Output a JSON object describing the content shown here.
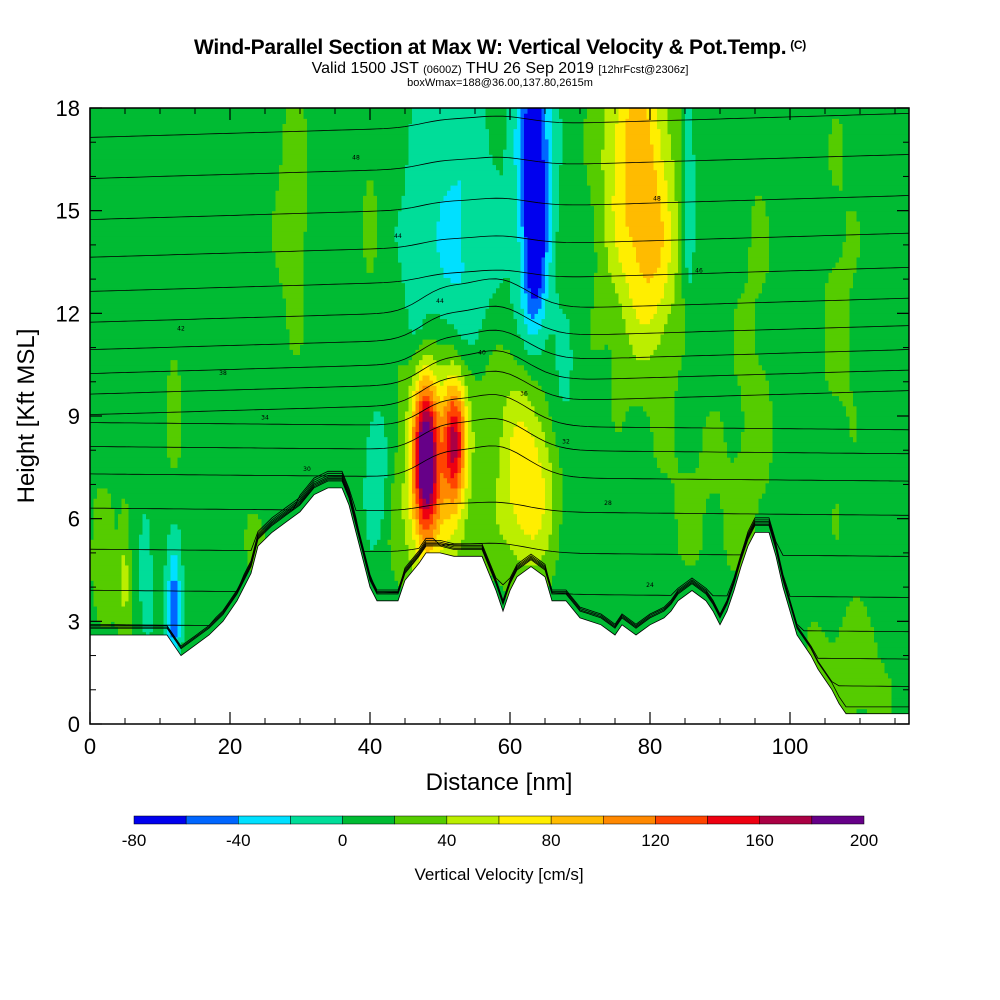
{
  "header": {
    "title": "Wind-Parallel Section at Max W: Vertical Velocity & Pot.Temp.",
    "copyright": "(C)",
    "valid_prefix": "Valid 1500 JST",
    "valid_utc": "(0600Z)",
    "valid_date": "THU 26 Sep 2019",
    "forecast": "[12hrFcst@2306z]",
    "box_info": "boxWmax=188@36.00,137.80,2615m"
  },
  "chart_data": {
    "type": "heatmap",
    "title": "Wind-Parallel Section at Max W: Vertical Velocity & Pot.Temp.",
    "xlabel": "Distance [nm]",
    "ylabel": "Height [Kft MSL]",
    "xlim": [
      0,
      117
    ],
    "ylim": [
      0,
      18
    ],
    "xticks": [
      0,
      20,
      40,
      60,
      80,
      100
    ],
    "yticks": [
      0,
      3,
      6,
      9,
      12,
      15,
      18
    ],
    "colorbar": {
      "label": "Vertical Velocity [cm/s]",
      "ticks": [
        -80,
        -40,
        0,
        40,
        80,
        120,
        160,
        200
      ],
      "levels": [
        -80,
        -60,
        -40,
        -20,
        0,
        20,
        40,
        60,
        80,
        100,
        120,
        140,
        160,
        180,
        200
      ],
      "colors": [
        "#0000ee",
        "#0066ff",
        "#00e0ff",
        "#00dd99",
        "#00bb33",
        "#55cc00",
        "#bbee00",
        "#ffee00",
        "#ffbb00",
        "#ff8800",
        "#ff4400",
        "#ee0011",
        "#aa0044",
        "#660088"
      ]
    },
    "terrain": [
      [
        0,
        2.6
      ],
      [
        4,
        2.6
      ],
      [
        8,
        2.6
      ],
      [
        11,
        2.6
      ],
      [
        12,
        2.3
      ],
      [
        13,
        2.0
      ],
      [
        15,
        2.3
      ],
      [
        17,
        2.6
      ],
      [
        19,
        3.0
      ],
      [
        21,
        3.6
      ],
      [
        23,
        4.4
      ],
      [
        24,
        5.2
      ],
      [
        26,
        5.6
      ],
      [
        28,
        5.9
      ],
      [
        30,
        6.2
      ],
      [
        32,
        6.7
      ],
      [
        34,
        6.9
      ],
      [
        36,
        6.9
      ],
      [
        37,
        6.4
      ],
      [
        38,
        5.6
      ],
      [
        39,
        4.8
      ],
      [
        40,
        4.0
      ],
      [
        41,
        3.6
      ],
      [
        44,
        3.6
      ],
      [
        45,
        4.2
      ],
      [
        47,
        4.7
      ],
      [
        48,
        5.0
      ],
      [
        50,
        5.0
      ],
      [
        52,
        4.9
      ],
      [
        56,
        4.9
      ],
      [
        58,
        3.9
      ],
      [
        59,
        3.3
      ],
      [
        60,
        3.9
      ],
      [
        61,
        4.3
      ],
      [
        63,
        4.6
      ],
      [
        65,
        4.3
      ],
      [
        66,
        3.6
      ],
      [
        68,
        3.6
      ],
      [
        70,
        3.1
      ],
      [
        73,
        2.9
      ],
      [
        75,
        2.6
      ],
      [
        76,
        2.9
      ],
      [
        78,
        2.6
      ],
      [
        80,
        2.9
      ],
      [
        82,
        3.1
      ],
      [
        83,
        3.3
      ],
      [
        84,
        3.6
      ],
      [
        86,
        3.9
      ],
      [
        88,
        3.6
      ],
      [
        89,
        3.3
      ],
      [
        90,
        2.9
      ],
      [
        91,
        3.3
      ],
      [
        92,
        3.9
      ],
      [
        93,
        4.6
      ],
      [
        94,
        5.2
      ],
      [
        95,
        5.6
      ],
      [
        97,
        5.6
      ],
      [
        98,
        4.9
      ],
      [
        99,
        4.0
      ],
      [
        100,
        3.3
      ],
      [
        101,
        2.6
      ],
      [
        102,
        2.3
      ],
      [
        103,
        2.0
      ],
      [
        104,
        1.6
      ],
      [
        105,
        1.3
      ],
      [
        106,
        1.0
      ],
      [
        107,
        0.6
      ],
      [
        108,
        0.3
      ],
      [
        117,
        0.3
      ]
    ],
    "isentrope_labels": [
      "48",
      "48",
      "44",
      "46",
      "44",
      "42",
      "40",
      "38",
      "36",
      "34",
      "32",
      "30",
      "28",
      "26",
      "24",
      "22",
      "20",
      "18",
      "16"
    ]
  }
}
